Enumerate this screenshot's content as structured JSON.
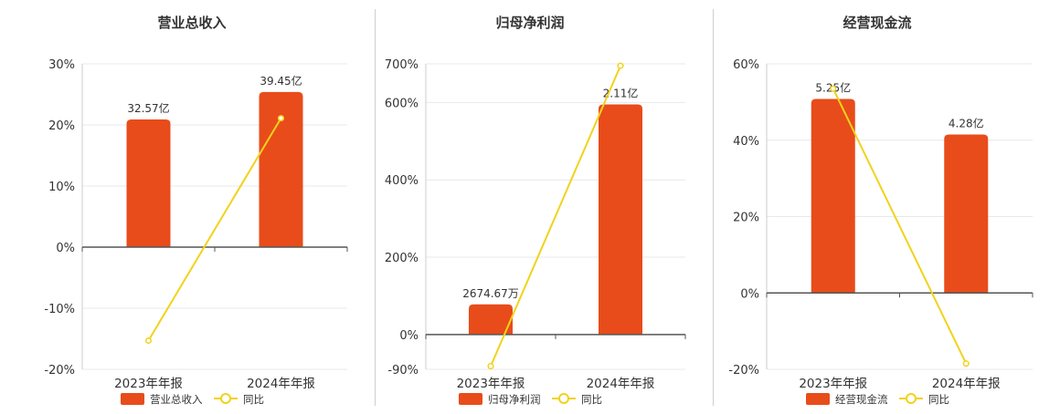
{
  "colors": {
    "bar": "#e84c1a",
    "line": "#f2d21b",
    "grid": "#e6e8ee",
    "axis": "#555555",
    "text": "#333333"
  },
  "legend": {
    "bar_label_key": "series.0.name",
    "line_label": "同比"
  },
  "chart_data": [
    {
      "type": "bar",
      "title": "营业总收入",
      "categories": [
        "2023年年报",
        "2024年年报"
      ],
      "series": [
        {
          "name": "营业总收入",
          "type": "bar",
          "values": [
            20.9,
            25.4
          ],
          "labels": [
            "32.57亿",
            "39.45亿"
          ]
        },
        {
          "name": "同比",
          "type": "line",
          "values": [
            -15.3,
            21.1
          ]
        }
      ],
      "ylim": [
        -20,
        30
      ],
      "yticks": [
        30,
        20,
        10,
        0,
        -10,
        -20
      ],
      "ytick_labels": [
        "30%",
        "20%",
        "10%",
        "0%",
        "-10%",
        "-20%"
      ],
      "grid": true,
      "legend_position": "bottom"
    },
    {
      "type": "bar",
      "title": "归母净利润",
      "categories": [
        "2023年年报",
        "2024年年报"
      ],
      "series": [
        {
          "name": "归母净利润",
          "type": "bar",
          "values": [
            78,
            595
          ],
          "labels": [
            "2674.67万",
            "2.11亿"
          ]
        },
        {
          "name": "同比",
          "type": "line",
          "values": [
            -82,
            695
          ]
        }
      ],
      "ylim": [
        -90,
        700
      ],
      "yticks": [
        700,
        600,
        400,
        200,
        0,
        -90
      ],
      "ytick_labels": [
        "700%",
        "600%",
        "400%",
        "200%",
        "0%",
        "-90%"
      ],
      "grid": true,
      "legend_position": "bottom"
    },
    {
      "type": "bar",
      "title": "经营现金流",
      "categories": [
        "2023年年报",
        "2024年年报"
      ],
      "series": [
        {
          "name": "经营现金流",
          "type": "bar",
          "values": [
            50.8,
            41.5
          ],
          "labels": [
            "5.25亿",
            "4.28亿"
          ]
        },
        {
          "name": "同比",
          "type": "line",
          "values": [
            53.5,
            -18.5
          ]
        }
      ],
      "ylim": [
        -20,
        60
      ],
      "yticks": [
        60,
        40,
        20,
        0,
        -20
      ],
      "ytick_labels": [
        "60%",
        "40%",
        "20%",
        "0%",
        "-20%"
      ],
      "grid": true,
      "legend_position": "bottom"
    }
  ]
}
